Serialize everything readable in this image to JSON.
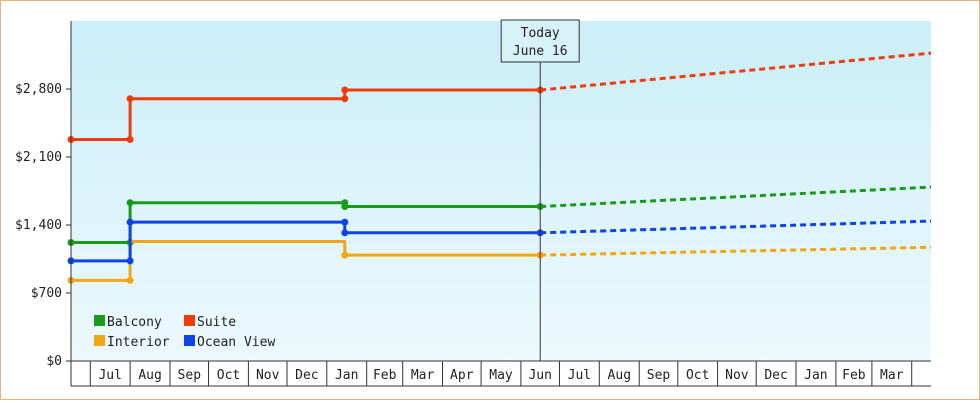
{
  "chart_data": {
    "type": "line",
    "title": "",
    "xlabel": "",
    "ylabel": "",
    "ylim": [
      0,
      3500
    ],
    "y_ticks": [
      "$0",
      "$700",
      "$1,400",
      "$2,100",
      "$2,800"
    ],
    "y_tick_values": [
      0,
      700,
      1400,
      2100,
      2800
    ],
    "x_month_labels": [
      "Jul",
      "Aug",
      "Sep",
      "Oct",
      "Nov",
      "Dec",
      "Jan",
      "Feb",
      "Mar",
      "Apr",
      "May",
      "Jun",
      "Jul",
      "Aug",
      "Sep",
      "Oct",
      "Nov",
      "Dec",
      "Jan",
      "Feb",
      "Mar"
    ],
    "x_range": [
      "2021-06-16",
      "2023-04-16"
    ],
    "today": {
      "date": "2022-06-16",
      "label_line1": "Today",
      "label_line2": "June 16"
    },
    "grid": false,
    "legend_placement": "bottom-left",
    "background": {
      "top": "#cbeef8",
      "bottom": "#ecf9fd"
    },
    "series": [
      {
        "name": "Balcony",
        "color": "#1a9a1a",
        "historical": [
          {
            "date": "2021-06-16",
            "value": 1220
          },
          {
            "date": "2021-08-01",
            "value": 1220
          },
          {
            "date": "2021-08-01",
            "value": 1630
          },
          {
            "date": "2022-01-15",
            "value": 1630
          },
          {
            "date": "2022-01-15",
            "value": 1590
          },
          {
            "date": "2022-06-16",
            "value": 1590
          }
        ],
        "markers": [
          {
            "date": "2021-06-16",
            "value": 1220
          },
          {
            "date": "2021-08-01",
            "value": 1220
          },
          {
            "date": "2021-08-01",
            "value": 1630
          },
          {
            "date": "2022-01-15",
            "value": 1630
          },
          {
            "date": "2022-01-15",
            "value": 1590
          },
          {
            "date": "2022-06-16",
            "value": 1590
          }
        ],
        "forecast": [
          {
            "date": "2022-06-16",
            "value": 1590
          },
          {
            "date": "2023-04-16",
            "value": 1790
          }
        ]
      },
      {
        "name": "Suite",
        "color": "#f03c0a",
        "historical": [
          {
            "date": "2021-06-16",
            "value": 2280
          },
          {
            "date": "2021-08-01",
            "value": 2280
          },
          {
            "date": "2021-08-01",
            "value": 2700
          },
          {
            "date": "2022-01-15",
            "value": 2700
          },
          {
            "date": "2022-01-15",
            "value": 2790
          },
          {
            "date": "2022-06-16",
            "value": 2790
          }
        ],
        "markers": [
          {
            "date": "2021-06-16",
            "value": 2280
          },
          {
            "date": "2021-08-01",
            "value": 2280
          },
          {
            "date": "2021-08-01",
            "value": 2700
          },
          {
            "date": "2022-01-15",
            "value": 2700
          },
          {
            "date": "2022-01-15",
            "value": 2790
          },
          {
            "date": "2022-06-16",
            "value": 2790
          }
        ],
        "forecast": [
          {
            "date": "2022-06-16",
            "value": 2790
          },
          {
            "date": "2023-04-16",
            "value": 3170
          }
        ]
      },
      {
        "name": "Interior",
        "color": "#f5a512",
        "historical": [
          {
            "date": "2021-06-16",
            "value": 830
          },
          {
            "date": "2021-08-01",
            "value": 830
          },
          {
            "date": "2021-08-01",
            "value": 1230
          },
          {
            "date": "2022-01-15",
            "value": 1230
          },
          {
            "date": "2022-01-15",
            "value": 1090
          },
          {
            "date": "2022-06-16",
            "value": 1090
          }
        ],
        "markers": [
          {
            "date": "2021-06-16",
            "value": 830
          },
          {
            "date": "2021-08-01",
            "value": 830
          },
          {
            "date": "2022-01-15",
            "value": 1090
          },
          {
            "date": "2022-06-16",
            "value": 1090
          }
        ],
        "forecast": [
          {
            "date": "2022-06-16",
            "value": 1090
          },
          {
            "date": "2023-04-16",
            "value": 1170
          }
        ]
      },
      {
        "name": "Ocean View",
        "color": "#1043e6",
        "historical": [
          {
            "date": "2021-06-16",
            "value": 1030
          },
          {
            "date": "2021-08-01",
            "value": 1030
          },
          {
            "date": "2021-08-01",
            "value": 1430
          },
          {
            "date": "2022-01-15",
            "value": 1430
          },
          {
            "date": "2022-01-15",
            "value": 1320
          },
          {
            "date": "2022-06-16",
            "value": 1320
          }
        ],
        "markers": [
          {
            "date": "2021-06-16",
            "value": 1030
          },
          {
            "date": "2021-08-01",
            "value": 1030
          },
          {
            "date": "2021-08-01",
            "value": 1430
          },
          {
            "date": "2022-01-15",
            "value": 1430
          },
          {
            "date": "2022-01-15",
            "value": 1320
          },
          {
            "date": "2022-06-16",
            "value": 1320
          }
        ],
        "forecast": [
          {
            "date": "2022-06-16",
            "value": 1320
          },
          {
            "date": "2023-04-16",
            "value": 1440
          }
        ]
      }
    ],
    "legend": [
      {
        "name": "Balcony",
        "color": "#1a9a1a"
      },
      {
        "name": "Suite",
        "color": "#f03c0a"
      },
      {
        "name": "Interior",
        "color": "#f5a512"
      },
      {
        "name": "Ocean View",
        "color": "#1043e6"
      }
    ]
  }
}
